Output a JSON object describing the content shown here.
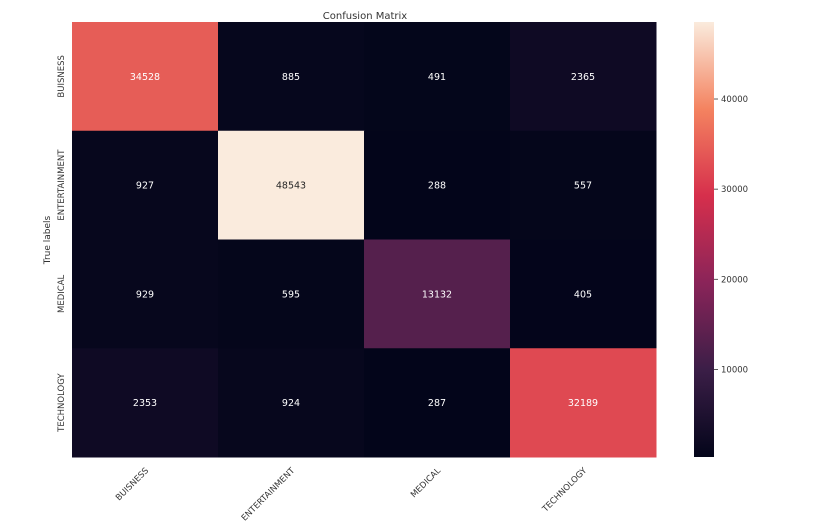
{
  "chart_data": {
    "type": "heatmap",
    "title": "Confusion Matrix",
    "xlabel": "",
    "ylabel": "True labels",
    "x_categories": [
      "BUISNESS",
      "ENTERTAINMENT",
      "MEDICAL",
      "TECHNOLOGY"
    ],
    "y_categories": [
      "BUISNESS",
      "ENTERTAINMENT",
      "MEDICAL",
      "TECHNOLOGY"
    ],
    "values": [
      [
        34528,
        885,
        491,
        2365
      ],
      [
        927,
        48543,
        288,
        557
      ],
      [
        929,
        595,
        13132,
        405
      ],
      [
        2353,
        924,
        287,
        32189
      ]
    ],
    "colorbar": {
      "ticks": [
        10000,
        20000,
        30000,
        40000
      ],
      "range": [
        287,
        48543
      ],
      "colormap": "rocket"
    }
  }
}
